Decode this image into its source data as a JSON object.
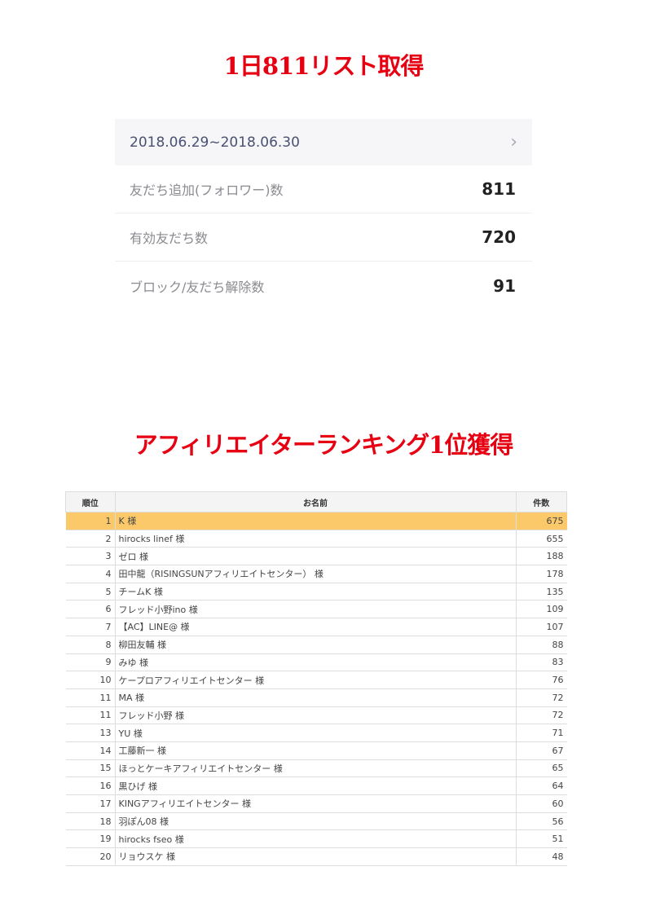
{
  "titles": {
    "top": "1日811リスト取得",
    "ranking": "アフィリエイターランキング1位獲得"
  },
  "stats": {
    "date_range": "2018.06.29~2018.06.30",
    "rows": [
      {
        "label": "友だち追加(フォロワー)数",
        "value": "811"
      },
      {
        "label": "有効友だち数",
        "value": "720"
      },
      {
        "label": "ブロック/友だち解除数",
        "value": "91"
      }
    ]
  },
  "ranking": {
    "headers": [
      "順位",
      "お名前",
      "件数"
    ],
    "highlight_color": "#fbc96a",
    "rows": [
      [
        "1",
        "K 様",
        "675"
      ],
      [
        "2",
        "hirocks linef 様",
        "655"
      ],
      [
        "3",
        "ゼロ 様",
        "188"
      ],
      [
        "4",
        "田中龍（RISINGSUNアフィリエイトセンター） 様",
        "178"
      ],
      [
        "5",
        "チームK 様",
        "135"
      ],
      [
        "6",
        "フレッド小野ino 様",
        "109"
      ],
      [
        "7",
        "【AC】LINE@ 様",
        "107"
      ],
      [
        "8",
        "柳田友輔 様",
        "88"
      ],
      [
        "9",
        "みゆ 様",
        "83"
      ],
      [
        "10",
        "ケープロアフィリエイトセンター 様",
        "76"
      ],
      [
        "11",
        "MA 様",
        "72"
      ],
      [
        "11",
        "フレッド小野 様",
        "72"
      ],
      [
        "13",
        "YU 様",
        "71"
      ],
      [
        "14",
        "工藤新一 様",
        "67"
      ],
      [
        "15",
        "ほっとケーキアフィリエイトセンター 様",
        "65"
      ],
      [
        "16",
        "黒ひげ 様",
        "64"
      ],
      [
        "17",
        "KINGアフィリエイトセンター 様",
        "60"
      ],
      [
        "18",
        "羽ぽん08 様",
        "56"
      ],
      [
        "19",
        "hirocks fseo 様",
        "51"
      ],
      [
        "20",
        "リョウスケ 様",
        "48"
      ]
    ]
  }
}
